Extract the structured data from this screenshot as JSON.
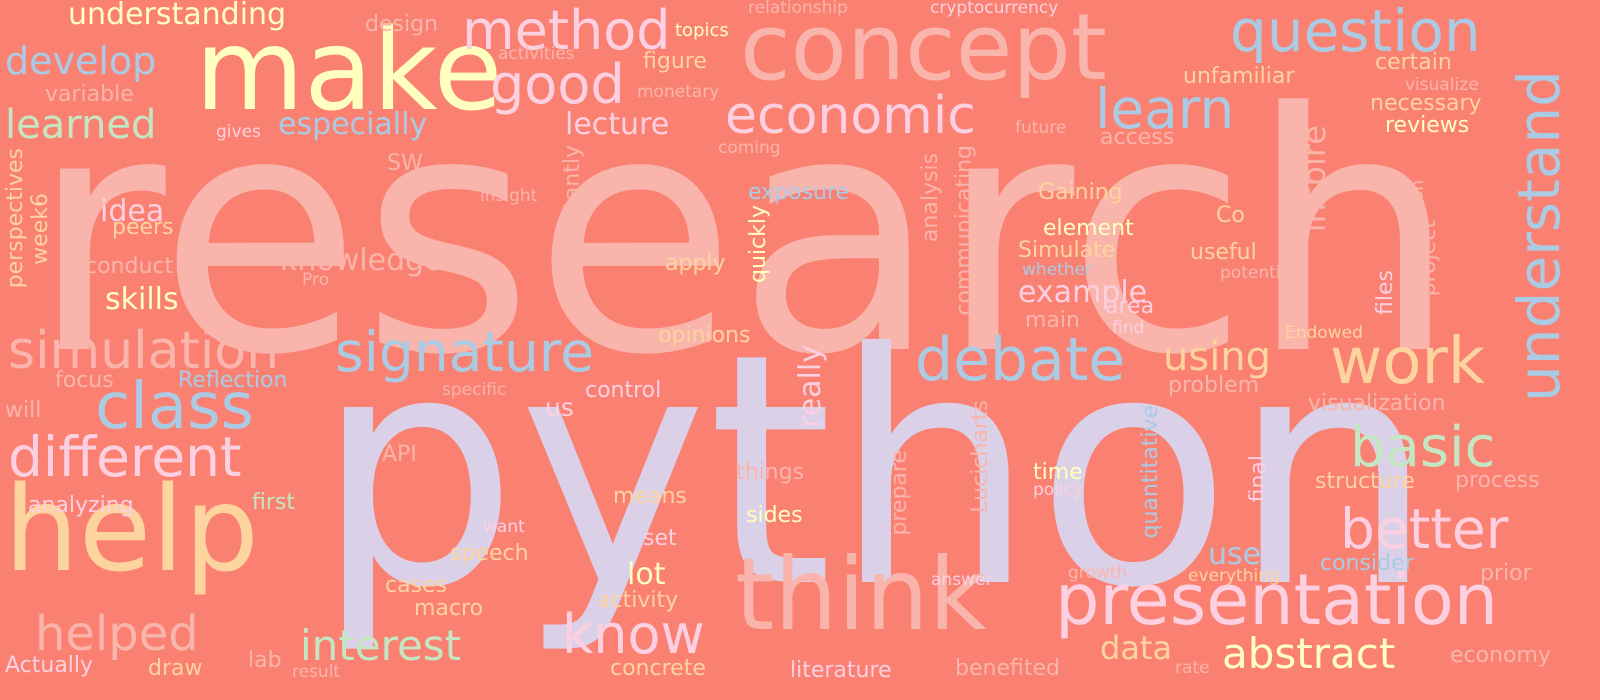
{
  "background": "#fa8072",
  "palette": {
    "pink": "#f9b5ac",
    "lavender": "#dad0e8",
    "yellow": "#ffffbf",
    "peach": "#fdd49e",
    "blue": "#abcbe4",
    "green": "#c4e6c3",
    "lightpink": "#fcd0e0"
  },
  "words": [
    "research",
    "python",
    "make",
    "concept",
    "help",
    "think",
    "presentation",
    "question",
    "method",
    "good",
    "economic",
    "debate",
    "signature",
    "understand",
    "learn",
    "class",
    "different",
    "simulation",
    "work",
    "basic",
    "better",
    "know",
    "interest",
    "helped",
    "abstract",
    "develop",
    "learned",
    "understanding",
    "especially",
    "using",
    "data",
    "lecture",
    "variable",
    "design",
    "figure",
    "topics",
    "unfamiliar",
    "certain",
    "necessary",
    "reviews",
    "visualize",
    "relationship",
    "cryptocurrency",
    "activities",
    "monetary",
    "access",
    "gives",
    "future",
    "coming",
    "inspire",
    "Con",
    "project",
    "potential",
    "files",
    "SW",
    "idea",
    "peers",
    "insight",
    "exposure",
    "Gaining",
    "element",
    "Simulate",
    "useful",
    "whether",
    "Co",
    "knowledge",
    "conduct",
    "skills",
    "apply",
    "importantly",
    "quickly",
    "analysis",
    "communicating",
    "example",
    "area",
    "find",
    "main",
    "perspectives",
    "week6",
    "Pro",
    "opinions",
    "Endowed",
    "focus",
    "Reflection",
    "specific",
    "control",
    "us",
    "really",
    "problem",
    "visualization",
    "will",
    "API",
    "things",
    "Lucicharts",
    "prepare",
    "time",
    "policy",
    "quantitative",
    "final",
    "structure",
    "process",
    "analyzing",
    "first",
    "means",
    "sides",
    "want",
    "set",
    "speech",
    "cases",
    "macro",
    "lot",
    "activity",
    "use",
    "answer",
    "growth",
    "everything",
    "consider",
    "prior",
    "Actually",
    "draw",
    "lab",
    "result",
    "concrete",
    "literature",
    "benefited",
    "rate",
    "economy"
  ]
}
